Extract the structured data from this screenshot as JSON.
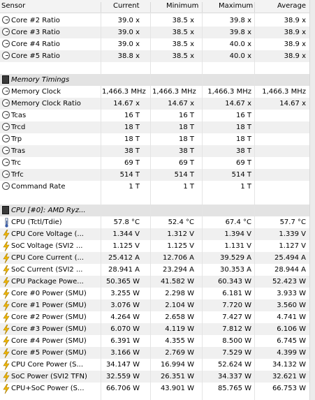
{
  "headers": {
    "sensor": "Sensor",
    "current": "Current",
    "minimum": "Minimum",
    "maximum": "Maximum",
    "average": "Average"
  },
  "rows": [
    {
      "kind": "clock",
      "label": "Core #2 Ratio",
      "cur": "39.0 x",
      "min": "38.5 x",
      "max": "39.8 x",
      "avg": "38.9 x"
    },
    {
      "kind": "clock",
      "label": "Core #3 Ratio",
      "cur": "39.0 x",
      "min": "38.5 x",
      "max": "39.8 x",
      "avg": "38.9 x"
    },
    {
      "kind": "clock",
      "label": "Core #4 Ratio",
      "cur": "39.0 x",
      "min": "38.5 x",
      "max": "40.0 x",
      "avg": "38.9 x"
    },
    {
      "kind": "clock",
      "label": "Core #5 Ratio",
      "cur": "38.8 x",
      "min": "38.5 x",
      "max": "40.0 x",
      "avg": "38.9 x"
    },
    {
      "kind": "blank"
    },
    {
      "kind": "section",
      "icon": "memory-chip-icon",
      "label": "Memory Timings"
    },
    {
      "kind": "clock",
      "label": "Memory Clock",
      "cur": "1,466.3 MHz",
      "min": "1,466.3 MHz",
      "max": "1,466.3 MHz",
      "avg": "1,466.3 MHz"
    },
    {
      "kind": "clock",
      "label": "Memory Clock Ratio",
      "cur": "14.67 x",
      "min": "14.67 x",
      "max": "14.67 x",
      "avg": "14.67 x"
    },
    {
      "kind": "clock",
      "label": "Tcas",
      "cur": "16 T",
      "min": "16 T",
      "max": "16 T",
      "avg": ""
    },
    {
      "kind": "clock",
      "label": "Trcd",
      "cur": "18 T",
      "min": "18 T",
      "max": "18 T",
      "avg": ""
    },
    {
      "kind": "clock",
      "label": "Trp",
      "cur": "18 T",
      "min": "18 T",
      "max": "18 T",
      "avg": ""
    },
    {
      "kind": "clock",
      "label": "Tras",
      "cur": "38 T",
      "min": "38 T",
      "max": "38 T",
      "avg": ""
    },
    {
      "kind": "clock",
      "label": "Trc",
      "cur": "69 T",
      "min": "69 T",
      "max": "69 T",
      "avg": ""
    },
    {
      "kind": "clock",
      "label": "Trfc",
      "cur": "514 T",
      "min": "514 T",
      "max": "514 T",
      "avg": ""
    },
    {
      "kind": "clock",
      "label": "Command Rate",
      "cur": "1 T",
      "min": "1 T",
      "max": "1 T",
      "avg": ""
    },
    {
      "kind": "blank"
    },
    {
      "kind": "section",
      "icon": "cpu-chip-icon",
      "label": "CPU [#0]: AMD Ryz..."
    },
    {
      "kind": "temp",
      "label": "CPU (Tctl/Tdie)",
      "cur": "57.8 °C",
      "min": "52.4 °C",
      "max": "67.4 °C",
      "avg": "57.7 °C"
    },
    {
      "kind": "bolt",
      "label": "CPU Core Voltage (...",
      "cur": "1.344 V",
      "min": "1.312 V",
      "max": "1.394 V",
      "avg": "1.339 V"
    },
    {
      "kind": "bolt",
      "label": "SoC Voltage (SVI2 ...",
      "cur": "1.125 V",
      "min": "1.125 V",
      "max": "1.131 V",
      "avg": "1.127 V"
    },
    {
      "kind": "bolt",
      "label": "CPU Core Current (...",
      "cur": "25.412 A",
      "min": "12.706 A",
      "max": "39.529 A",
      "avg": "25.494 A"
    },
    {
      "kind": "bolt",
      "label": "SoC Current (SVI2 ...",
      "cur": "28.941 A",
      "min": "23.294 A",
      "max": "30.353 A",
      "avg": "28.944 A"
    },
    {
      "kind": "bolt",
      "label": "CPU Package Powe...",
      "cur": "50.365 W",
      "min": "41.582 W",
      "max": "60.343 W",
      "avg": "52.423 W"
    },
    {
      "kind": "bolt",
      "label": "Core #0 Power (SMU)",
      "cur": "3.255 W",
      "min": "2.298 W",
      "max": "6.181 W",
      "avg": "3.933 W"
    },
    {
      "kind": "bolt",
      "label": "Core #1 Power (SMU)",
      "cur": "3.076 W",
      "min": "2.104 W",
      "max": "7.720 W",
      "avg": "3.560 W"
    },
    {
      "kind": "bolt",
      "label": "Core #2 Power (SMU)",
      "cur": "4.264 W",
      "min": "2.658 W",
      "max": "7.427 W",
      "avg": "4.741 W"
    },
    {
      "kind": "bolt",
      "label": "Core #3 Power (SMU)",
      "cur": "6.070 W",
      "min": "4.119 W",
      "max": "7.812 W",
      "avg": "6.106 W"
    },
    {
      "kind": "bolt",
      "label": "Core #4 Power (SMU)",
      "cur": "6.391 W",
      "min": "4.355 W",
      "max": "8.500 W",
      "avg": "6.745 W"
    },
    {
      "kind": "bolt",
      "label": "Core #5 Power (SMU)",
      "cur": "3.166 W",
      "min": "2.769 W",
      "max": "7.529 W",
      "avg": "4.399 W"
    },
    {
      "kind": "bolt",
      "label": "CPU Core Power (S...",
      "cur": "34.147 W",
      "min": "16.994 W",
      "max": "52.624 W",
      "avg": "34.132 W"
    },
    {
      "kind": "bolt",
      "label": "SoC Power (SVI2 TFN)",
      "cur": "32.559 W",
      "min": "26.351 W",
      "max": "34.337 W",
      "avg": "32.621 W"
    },
    {
      "kind": "bolt",
      "label": "CPU+SoC Power (S...",
      "cur": "66.706 W",
      "min": "43.901 W",
      "max": "85.765 W",
      "avg": "66.753 W"
    }
  ]
}
